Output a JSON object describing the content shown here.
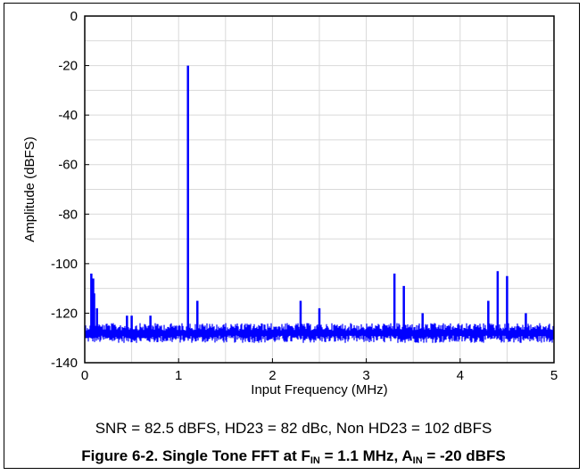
{
  "chart_data": {
    "type": "line",
    "xlabel": "Input Frequency (MHz)",
    "ylabel": "Amplitude (dBFS)",
    "xlim": [
      0,
      5
    ],
    "ylim": [
      -140,
      0
    ],
    "xticks": [
      0,
      1,
      2,
      3,
      4,
      5
    ],
    "yticks": [
      0,
      -20,
      -40,
      -60,
      -80,
      -100,
      -120,
      -140
    ],
    "grid": true,
    "series_color": "#0000ff",
    "noise_floor_range_dbfs": [
      -132,
      -121
    ],
    "spurs": [
      {
        "x": 0.07,
        "y": -104
      },
      {
        "x": 0.09,
        "y": -106
      },
      {
        "x": 0.1,
        "y": -112
      },
      {
        "x": 0.13,
        "y": -118
      },
      {
        "x": 0.45,
        "y": -121
      },
      {
        "x": 0.5,
        "y": -121
      },
      {
        "x": 0.7,
        "y": -121
      },
      {
        "x": 1.1,
        "y": -20
      },
      {
        "x": 1.2,
        "y": -115
      },
      {
        "x": 2.3,
        "y": -115
      },
      {
        "x": 2.5,
        "y": -118
      },
      {
        "x": 3.3,
        "y": -104
      },
      {
        "x": 3.4,
        "y": -109
      },
      {
        "x": 3.6,
        "y": -120
      },
      {
        "x": 4.3,
        "y": -115
      },
      {
        "x": 4.4,
        "y": -103
      },
      {
        "x": 4.5,
        "y": -105
      },
      {
        "x": 4.7,
        "y": -120
      }
    ]
  },
  "note": "SNR = 82.5 dBFS, HD23 = 82 dBc, Non HD23 = 102 dBFS",
  "caption": {
    "prefix": "Figure 6-2. Single Tone FFT at F",
    "sub1": "IN",
    "mid": " = 1.1 MHz, A",
    "sub2": "IN",
    "suffix": " = -20 dBFS"
  }
}
